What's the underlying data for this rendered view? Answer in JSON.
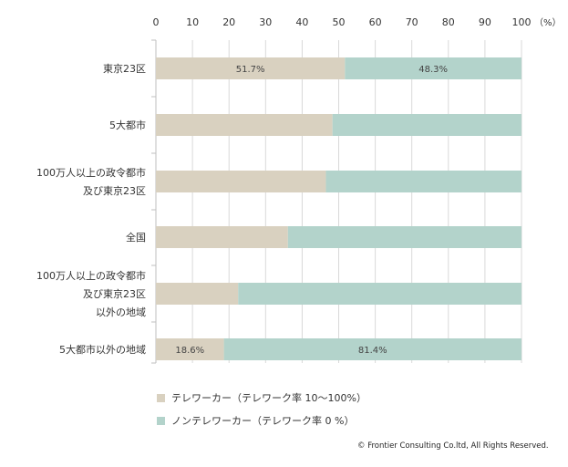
{
  "chart_data": {
    "type": "bar",
    "stacked": true,
    "orientation": "horizontal",
    "percent_stacked": true,
    "categories": [
      [
        "東京23区"
      ],
      [
        "5大都市"
      ],
      [
        "100万人以上の政令都市",
        "及び東京23区"
      ],
      [
        "全国"
      ],
      [
        "100万人以上の政令都市",
        "及び東京23区",
        "以外の地域"
      ],
      [
        "5大都市以外の地域"
      ]
    ],
    "series": [
      {
        "name": "テレワーカー（テレワーク率 10〜100%）",
        "values": [
          51.7,
          48.3,
          46.5,
          36.1,
          22.5,
          18.6
        ]
      },
      {
        "name": "ノンテレワーカー（テレワーク率 0 %）",
        "values": [
          48.3,
          51.7,
          53.5,
          63.9,
          77.5,
          81.4
        ]
      }
    ],
    "data_labels": [
      {
        "series": 0,
        "category": 0,
        "text": "51.7%"
      },
      {
        "series": 1,
        "category": 0,
        "text": "48.3%"
      },
      {
        "series": 0,
        "category": 5,
        "text": "18.6%"
      },
      {
        "series": 1,
        "category": 5,
        "text": "81.4%"
      }
    ],
    "x_ticks": [
      "0",
      "10",
      "20",
      "30",
      "40",
      "50",
      "60",
      "70",
      "80",
      "90",
      "100"
    ],
    "x_unit": "（%）",
    "xlim": [
      0,
      100
    ],
    "x_axis_position": "top",
    "grid": true,
    "legend_position": "bottom-left",
    "colors": {
      "series0": "#d9d1c0",
      "series1": "#b3d3cb",
      "grid": "#d9d9d9",
      "axis": "#bfbfbf",
      "text": "#333333"
    }
  },
  "legend": [
    {
      "label": "テレワーカー（テレワーク率 10〜100%）",
      "color": "#d9d1c0"
    },
    {
      "label": "ノンテレワーカー（テレワーク率 0 %）",
      "color": "#b3d3cb"
    }
  ],
  "copyright": "© Frontier Consulting Co.ltd, All Rights Reserved."
}
